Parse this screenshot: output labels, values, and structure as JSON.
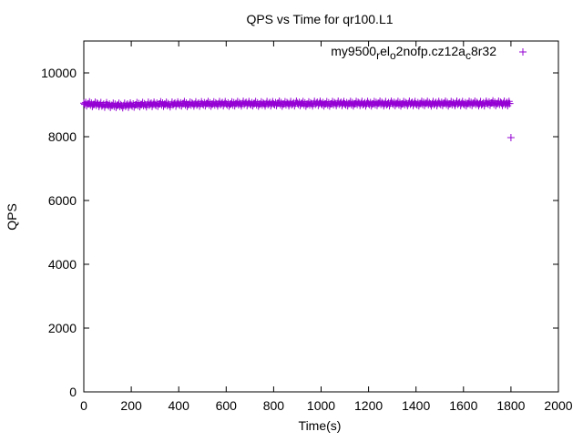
{
  "chart_data": {
    "type": "scatter",
    "title": "QPS vs Time for qr100.L1",
    "xlabel": "Time(s)",
    "ylabel": "QPS",
    "xlim": [
      0,
      2000
    ],
    "ylim": [
      0,
      11000
    ],
    "xticks": [
      "0",
      "200",
      "400",
      "600",
      "800",
      "1000",
      "1200",
      "1400",
      "1600",
      "1800",
      "2000"
    ],
    "yticks": [
      "0",
      "2000",
      "4000",
      "6000",
      "8000",
      "10000"
    ],
    "grid": false,
    "legend_position": "top-right",
    "series": [
      {
        "name": "my9500_rel_o2nofp.cz12a_c8r32",
        "color": "#9400d3",
        "marker": "+",
        "x": [
          0,
          20,
          40,
          60,
          80,
          100,
          120,
          140,
          160,
          180,
          200,
          220,
          240,
          260,
          280,
          300,
          320,
          340,
          360,
          380,
          400,
          420,
          440,
          460,
          480,
          500,
          520,
          540,
          560,
          580,
          600,
          620,
          640,
          660,
          680,
          700,
          720,
          740,
          760,
          780,
          800,
          820,
          840,
          860,
          880,
          900,
          920,
          940,
          960,
          980,
          1000,
          1020,
          1040,
          1060,
          1080,
          1100,
          1120,
          1140,
          1160,
          1180,
          1200,
          1220,
          1240,
          1260,
          1280,
          1300,
          1320,
          1340,
          1360,
          1380,
          1400,
          1420,
          1440,
          1460,
          1480,
          1500,
          1520,
          1540,
          1560,
          1580,
          1600,
          1620,
          1640,
          1660,
          1680,
          1700,
          1720,
          1740,
          1760,
          1780,
          1795,
          1800
        ],
        "y": [
          9050,
          9030,
          9010,
          9020,
          8990,
          9000,
          8980,
          8990,
          8970,
          8990,
          8990,
          9000,
          9010,
          9000,
          9020,
          9010,
          9030,
          9020,
          9000,
          9030,
          9020,
          9040,
          9010,
          9030,
          9020,
          9030,
          9040,
          9020,
          9030,
          9040,
          9030,
          9020,
          9040,
          9030,
          9050,
          9030,
          9040,
          9020,
          9030,
          9040,
          9030,
          9050,
          9020,
          9040,
          9030,
          9050,
          9040,
          9020,
          9030,
          9050,
          9040,
          9030,
          9030,
          9040,
          9050,
          9030,
          9040,
          9030,
          9050,
          9030,
          9040,
          9030,
          9050,
          9040,
          9030,
          9050,
          9040,
          9030,
          9040,
          9050,
          9030,
          9040,
          9050,
          9030,
          9040,
          9040,
          9050,
          9030,
          9040,
          9050,
          9030,
          9040,
          9050,
          9040,
          9030,
          9050,
          9060,
          9040,
          9050,
          9040,
          9040,
          7970
        ]
      }
    ]
  }
}
